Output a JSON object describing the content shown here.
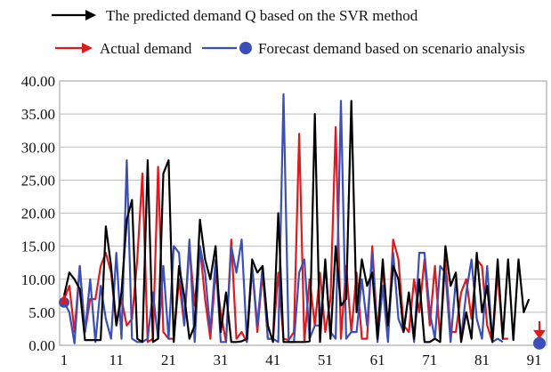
{
  "chart_data": {
    "type": "line",
    "title": "",
    "xlabel": "",
    "ylabel": "",
    "x": [
      1,
      2,
      3,
      4,
      5,
      6,
      7,
      8,
      9,
      10,
      11,
      12,
      13,
      14,
      15,
      16,
      17,
      18,
      19,
      20,
      21,
      22,
      23,
      24,
      25,
      26,
      27,
      28,
      29,
      30,
      31,
      32,
      33,
      34,
      35,
      36,
      37,
      38,
      39,
      40,
      41,
      42,
      43,
      44,
      45,
      46,
      47,
      48,
      49,
      50,
      51,
      52,
      53,
      54,
      55,
      56,
      57,
      58,
      59,
      60,
      61,
      62,
      63,
      64,
      65,
      66,
      67,
      68,
      69,
      70,
      71,
      72,
      73,
      74,
      75,
      76,
      77,
      78,
      79,
      80,
      81,
      82,
      83,
      84,
      85,
      86,
      87,
      88,
      89,
      90,
      91,
      92
    ],
    "x_ticks": [
      "1",
      "11",
      "21",
      "31",
      "41",
      "51",
      "61",
      "71",
      "81",
      "91"
    ],
    "y_ticks": [
      "0.00",
      "5.00",
      "10.00",
      "15.00",
      "20.00",
      "25.00",
      "30.00",
      "35.00",
      "40.00"
    ],
    "ylim": [
      0,
      40
    ],
    "grid": "horizontal",
    "legend_position": "top",
    "series": [
      {
        "name": "The predicted demand Q based on the SVR method",
        "color": "#000000",
        "values": [
          7.5,
          11,
          10,
          8.5,
          0.8,
          0.8,
          0.8,
          0.8,
          18,
          12,
          3,
          8,
          19,
          22,
          1,
          0.5,
          28,
          0.5,
          1,
          26,
          28,
          0.5,
          12,
          7.5,
          1,
          3,
          19,
          13,
          10,
          15,
          2,
          8,
          0.5,
          0.5,
          0.6,
          1,
          13,
          11,
          12,
          3,
          0.5,
          20,
          0.5,
          0.5,
          0.5,
          0.5,
          0.5,
          0.6,
          35,
          0.5,
          13,
          1,
          15,
          6,
          7,
          37,
          5,
          13,
          9,
          11,
          1,
          13,
          3,
          12,
          10,
          2,
          8,
          1,
          10,
          0.5,
          0.5,
          1,
          0.5,
          15,
          9,
          11,
          0.5,
          5,
          1,
          14,
          5,
          9,
          0.5,
          13,
          1,
          13,
          0.8,
          13,
          5,
          7,
          null,
          null
        ]
      },
      {
        "name": "Actual demand",
        "color": "#e0191e",
        "values": [
          7,
          9,
          2,
          12,
          2,
          7,
          7,
          12,
          14,
          11,
          3,
          7,
          3,
          4,
          13,
          26,
          0.5,
          1,
          27,
          2,
          1,
          1,
          10,
          3,
          15,
          6,
          15,
          7,
          1,
          11,
          5,
          0.5,
          16,
          1,
          2,
          0.5,
          12,
          2,
          11,
          1,
          1,
          11,
          1,
          0.8,
          2,
          32,
          0.5,
          10,
          3,
          11,
          2,
          7,
          33,
          1,
          12,
          2,
          11,
          1,
          1,
          15,
          2,
          12,
          1,
          16,
          13,
          3,
          2,
          10,
          5,
          13,
          3,
          12,
          1,
          13,
          2,
          2,
          8,
          10,
          4,
          13,
          12,
          3,
          0.5,
          11,
          1,
          1,
          null,
          null,
          null,
          null,
          null,
          null
        ]
      },
      {
        "name": "Forecast demand based on scenario analysis",
        "color": "#3b4fb8",
        "values": [
          6.5,
          5,
          0.3,
          12,
          2,
          10,
          0.5,
          9,
          4,
          1,
          14,
          1,
          28,
          1,
          0.5,
          0.5,
          1,
          8,
          1,
          12,
          1,
          15,
          14,
          3,
          16,
          0.5,
          15,
          11,
          2,
          13,
          0.5,
          0.5,
          15,
          11,
          16,
          0.5,
          12,
          3,
          12,
          1,
          1,
          0.5,
          38,
          0.5,
          0.5,
          11,
          13,
          1,
          3,
          3,
          12,
          2,
          1,
          37,
          1,
          2,
          2,
          10,
          3,
          14,
          0.5,
          9,
          0.5,
          14,
          4,
          2,
          8,
          0.5,
          14,
          14,
          5,
          1,
          12,
          11,
          0.5,
          10,
          1,
          8,
          13,
          4,
          1,
          12,
          0.5,
          1,
          0.5,
          null,
          null,
          null,
          null,
          null,
          null,
          null
        ]
      }
    ],
    "end_markers": [
      {
        "series": "Actual demand",
        "x": 92,
        "y": 1.5
      },
      {
        "series": "Forecast demand based on scenario analysis",
        "x": 92,
        "y": 0.3
      }
    ]
  }
}
